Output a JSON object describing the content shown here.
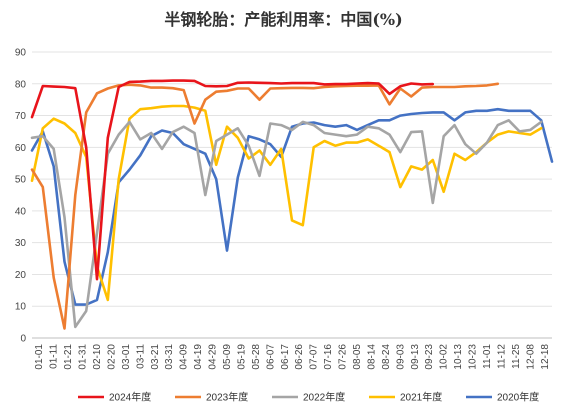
{
  "chart_data": {
    "type": "line",
    "title": "半钢轮胎：产能利用率：中国(%)",
    "ylim": [
      0,
      90
    ],
    "yticks": [
      0,
      10,
      20,
      30,
      40,
      50,
      60,
      70,
      80,
      90
    ],
    "grid": true,
    "legend_position": "bottom",
    "x_tick_labels": [
      "01-01",
      "01-11",
      "01-21",
      "01-31",
      "02-10",
      "02-20",
      "03-01",
      "03-11",
      "03-21",
      "03-31",
      "04-09",
      "04-19",
      "04-29",
      "05-09",
      "05-19",
      "05-28",
      "06-07",
      "06-17",
      "06-26",
      "07-07",
      "07-16",
      "07-26",
      "08-05",
      "08-14",
      "08-24",
      "09-03",
      "09-13",
      "09-23",
      "10-02",
      "10-13",
      "10-23",
      "11-01",
      "11-12",
      "11-25",
      "12-08",
      "12-18"
    ],
    "series": [
      {
        "name": "2024年度",
        "color": "#e8141b",
        "points": [
          [
            0,
            69.5
          ],
          [
            1,
            79.3
          ],
          [
            2,
            79.1
          ],
          [
            3,
            79.0
          ],
          [
            4,
            78.6
          ],
          [
            5,
            60.0
          ],
          [
            6,
            18.5
          ],
          [
            7,
            63.0
          ],
          [
            8,
            79.0
          ],
          [
            9,
            80.6
          ],
          [
            10,
            80.7
          ],
          [
            11,
            80.9
          ],
          [
            12,
            80.9
          ],
          [
            13,
            81.0
          ],
          [
            14,
            81.0
          ],
          [
            15,
            80.9
          ],
          [
            16,
            79.3
          ],
          [
            17,
            79.2
          ],
          [
            18,
            79.3
          ],
          [
            19,
            80.3
          ],
          [
            20,
            80.4
          ],
          [
            21,
            80.3
          ],
          [
            22,
            80.2
          ],
          [
            23,
            80.1
          ],
          [
            24,
            80.2
          ],
          [
            25,
            80.2
          ],
          [
            26,
            80.2
          ],
          [
            27,
            79.8
          ],
          [
            28,
            79.9
          ],
          [
            29,
            79.9
          ],
          [
            30,
            80.1
          ],
          [
            31,
            80.2
          ],
          [
            32,
            80.1
          ],
          [
            33,
            76.8
          ],
          [
            34,
            79.2
          ],
          [
            35,
            80.1
          ],
          [
            36,
            79.8
          ],
          [
            37,
            79.9
          ]
        ]
      },
      {
        "name": "2023年度",
        "color": "#ed7d31",
        "points": [
          [
            0,
            53.0
          ],
          [
            1,
            47.5
          ],
          [
            2,
            19.0
          ],
          [
            3,
            3.0
          ],
          [
            4,
            45.0
          ],
          [
            5,
            71.0
          ],
          [
            6,
            77.0
          ],
          [
            7,
            78.5
          ],
          [
            8,
            79.5
          ],
          [
            9,
            79.7
          ],
          [
            10,
            79.5
          ],
          [
            11,
            78.8
          ],
          [
            12,
            78.8
          ],
          [
            13,
            78.6
          ],
          [
            14,
            78.0
          ],
          [
            15,
            67.5
          ],
          [
            16,
            75.0
          ],
          [
            17,
            77.5
          ],
          [
            18,
            77.8
          ],
          [
            19,
            78.5
          ],
          [
            20,
            78.5
          ],
          [
            21,
            75.0
          ],
          [
            22,
            78.5
          ],
          [
            23,
            78.6
          ],
          [
            24,
            78.7
          ],
          [
            25,
            78.7
          ],
          [
            26,
            78.6
          ],
          [
            27,
            79.0
          ],
          [
            28,
            79.2
          ],
          [
            29,
            79.3
          ],
          [
            30,
            79.4
          ],
          [
            31,
            79.4
          ],
          [
            32,
            79.5
          ],
          [
            33,
            73.5
          ],
          [
            34,
            78.5
          ],
          [
            35,
            76.0
          ],
          [
            36,
            78.8
          ],
          [
            37,
            79.0
          ],
          [
            38,
            79.0
          ],
          [
            39,
            79.0
          ],
          [
            40,
            79.2
          ],
          [
            41,
            79.3
          ],
          [
            42,
            79.5
          ],
          [
            43,
            80.0
          ]
        ]
      },
      {
        "name": "2022年度",
        "color": "#a5a5a5",
        "points": [
          [
            0,
            63.0
          ],
          [
            1,
            63.5
          ],
          [
            2,
            59.5
          ],
          [
            3,
            38.0
          ],
          [
            4,
            3.5
          ],
          [
            5,
            8.5
          ],
          [
            6,
            33.0
          ],
          [
            7,
            58.0
          ],
          [
            8,
            64.0
          ],
          [
            9,
            68.0
          ],
          [
            10,
            62.5
          ],
          [
            11,
            64.5
          ],
          [
            12,
            59.5
          ],
          [
            13,
            64.8
          ],
          [
            14,
            66.5
          ],
          [
            15,
            64.5
          ],
          [
            16,
            45.0
          ],
          [
            17,
            62.0
          ],
          [
            18,
            64.0
          ],
          [
            19,
            66.0
          ],
          [
            20,
            60.5
          ],
          [
            21,
            51.0
          ],
          [
            22,
            67.5
          ],
          [
            23,
            67.0
          ],
          [
            24,
            65.5
          ],
          [
            25,
            68.0
          ],
          [
            26,
            67.0
          ],
          [
            27,
            64.5
          ],
          [
            28,
            64.0
          ],
          [
            29,
            63.5
          ],
          [
            30,
            64.0
          ],
          [
            31,
            66.5
          ],
          [
            32,
            66.0
          ],
          [
            33,
            64.0
          ],
          [
            34,
            58.5
          ],
          [
            35,
            64.8
          ],
          [
            36,
            65.0
          ],
          [
            37,
            42.5
          ],
          [
            38,
            63.5
          ],
          [
            39,
            67.0
          ],
          [
            40,
            61.0
          ],
          [
            41,
            58.0
          ],
          [
            42,
            61.5
          ],
          [
            43,
            67.0
          ],
          [
            44,
            68.5
          ],
          [
            45,
            65.0
          ],
          [
            46,
            65.5
          ],
          [
            47,
            68.0
          ]
        ]
      },
      {
        "name": "2021年度",
        "color": "#ffc000",
        "points": [
          [
            0,
            49.5
          ],
          [
            1,
            66.0
          ],
          [
            2,
            69.0
          ],
          [
            3,
            67.5
          ],
          [
            4,
            64.5
          ],
          [
            5,
            57.0
          ],
          [
            6,
            22.5
          ],
          [
            7,
            12.0
          ],
          [
            8,
            50.0
          ],
          [
            9,
            69.0
          ],
          [
            10,
            72.0
          ],
          [
            11,
            72.3
          ],
          [
            12,
            72.8
          ],
          [
            13,
            73.0
          ],
          [
            14,
            73.0
          ],
          [
            15,
            72.5
          ],
          [
            16,
            71.5
          ],
          [
            17,
            54.5
          ],
          [
            18,
            66.5
          ],
          [
            19,
            63.0
          ],
          [
            20,
            56.5
          ],
          [
            21,
            59.0
          ],
          [
            22,
            54.5
          ],
          [
            23,
            59.5
          ],
          [
            24,
            37.0
          ],
          [
            25,
            35.5
          ],
          [
            26,
            60.0
          ],
          [
            27,
            62.0
          ],
          [
            28,
            60.5
          ],
          [
            29,
            61.5
          ],
          [
            30,
            61.5
          ],
          [
            31,
            62.5
          ],
          [
            32,
            60.5
          ],
          [
            33,
            58.5
          ],
          [
            34,
            47.5
          ],
          [
            35,
            54.0
          ],
          [
            36,
            53.0
          ],
          [
            37,
            56.0
          ],
          [
            38,
            46.0
          ],
          [
            39,
            58.0
          ],
          [
            40,
            56.0
          ],
          [
            41,
            58.5
          ],
          [
            42,
            61.5
          ],
          [
            43,
            64.0
          ],
          [
            44,
            65.0
          ],
          [
            45,
            64.5
          ],
          [
            46,
            64.0
          ],
          [
            47,
            66.0
          ]
        ]
      },
      {
        "name": "2020年度",
        "color": "#4472c4",
        "points": [
          [
            0,
            59.0
          ],
          [
            1,
            65.0
          ],
          [
            2,
            54.0
          ],
          [
            3,
            24.0
          ],
          [
            4,
            10.5
          ],
          [
            5,
            10.5
          ],
          [
            6,
            12.0
          ],
          [
            7,
            27.0
          ],
          [
            8,
            49.0
          ],
          [
            9,
            53.0
          ],
          [
            10,
            57.5
          ],
          [
            11,
            63.5
          ],
          [
            12,
            65.3
          ],
          [
            13,
            64.5
          ],
          [
            14,
            61.0
          ],
          [
            15,
            59.5
          ],
          [
            16,
            58.0
          ],
          [
            17,
            50.0
          ],
          [
            18,
            27.5
          ],
          [
            19,
            50.5
          ],
          [
            20,
            63.5
          ],
          [
            21,
            62.5
          ],
          [
            22,
            61.0
          ],
          [
            23,
            57.0
          ],
          [
            24,
            66.5
          ],
          [
            25,
            67.5
          ],
          [
            26,
            67.8
          ],
          [
            27,
            67.0
          ],
          [
            28,
            66.5
          ],
          [
            29,
            67.0
          ],
          [
            30,
            65.5
          ],
          [
            31,
            67.0
          ],
          [
            32,
            68.5
          ],
          [
            33,
            68.5
          ],
          [
            34,
            70.0
          ],
          [
            35,
            70.5
          ],
          [
            36,
            70.8
          ],
          [
            37,
            71.0
          ],
          [
            38,
            71.0
          ],
          [
            39,
            68.5
          ],
          [
            40,
            71.0
          ],
          [
            41,
            71.5
          ],
          [
            42,
            71.5
          ],
          [
            43,
            72.0
          ],
          [
            44,
            71.5
          ],
          [
            45,
            71.5
          ],
          [
            46,
            71.5
          ],
          [
            47,
            68.5
          ],
          [
            48,
            55.5
          ]
        ]
      }
    ]
  }
}
